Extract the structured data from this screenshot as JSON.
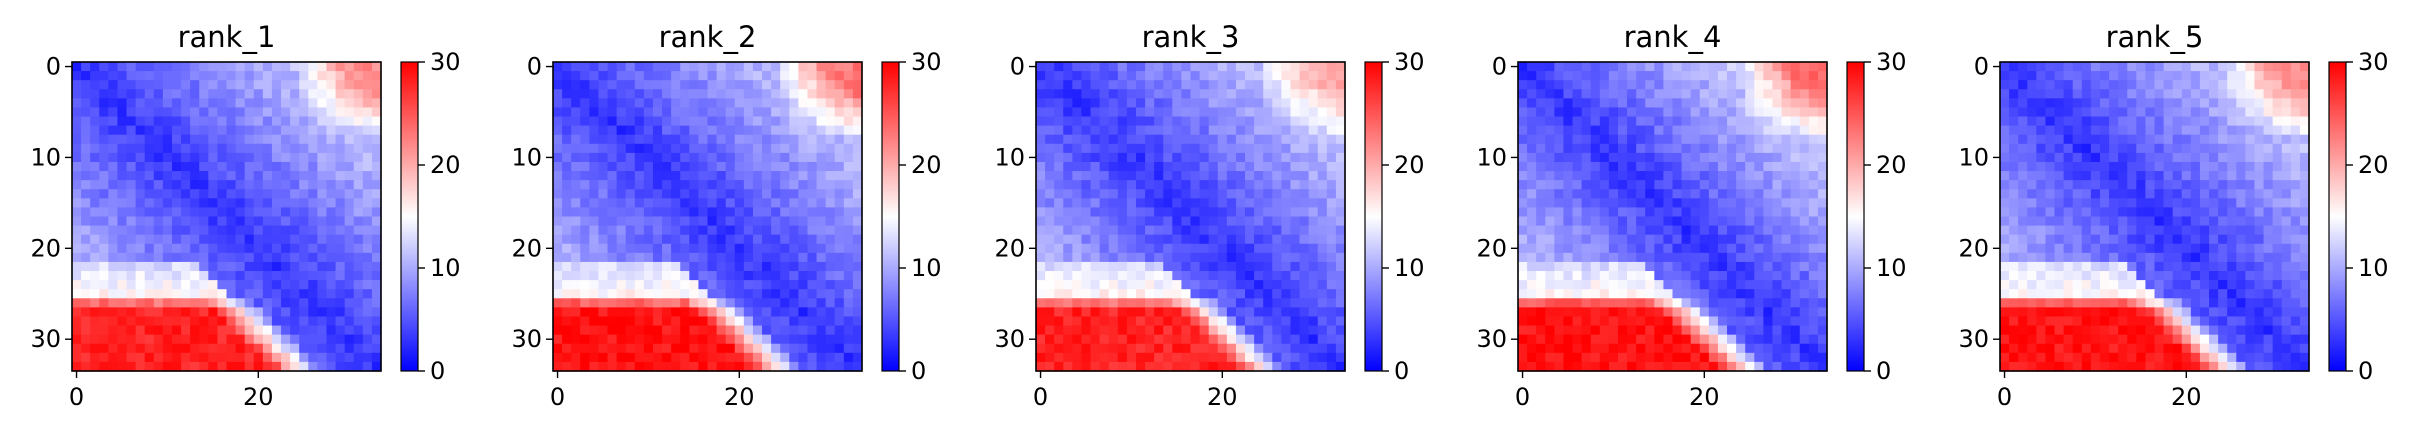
{
  "chart_data": [
    {
      "type": "heatmap",
      "title": "rank_1",
      "matrix_size": 34,
      "x_ticks": [
        "0",
        "20"
      ],
      "y_ticks": [
        "0",
        "10",
        "20",
        "30"
      ],
      "colorbar": {
        "min": 0,
        "max": 30,
        "ticks": [
          "0",
          "10",
          "20",
          "30"
        ],
        "colormap": "bwr"
      },
      "pattern": {
        "near_diagonal_value": 3,
        "far_off_diagonal_value": 14,
        "bottom_left_corner_value": 28,
        "top_right_corner_value": 22,
        "red_block_rows_start": 26
      }
    },
    {
      "type": "heatmap",
      "title": "rank_2",
      "matrix_size": 34,
      "x_ticks": [
        "0",
        "20"
      ],
      "y_ticks": [
        "0",
        "10",
        "20",
        "30"
      ],
      "colorbar": {
        "min": 0,
        "max": 30,
        "ticks": [
          "0",
          "10",
          "20",
          "30"
        ],
        "colormap": "bwr"
      },
      "pattern": {
        "near_diagonal_value": 3,
        "far_off_diagonal_value": 14,
        "bottom_left_corner_value": 29,
        "top_right_corner_value": 23,
        "red_block_rows_start": 26
      }
    },
    {
      "type": "heatmap",
      "title": "rank_3",
      "matrix_size": 34,
      "x_ticks": [
        "0",
        "20"
      ],
      "y_ticks": [
        "0",
        "10",
        "20",
        "30"
      ],
      "colorbar": {
        "min": 0,
        "max": 30,
        "ticks": [
          "0",
          "10",
          "20",
          "30"
        ],
        "colormap": "bwr"
      },
      "pattern": {
        "near_diagonal_value": 3,
        "far_off_diagonal_value": 14,
        "bottom_left_corner_value": 28,
        "top_right_corner_value": 20,
        "red_block_rows_start": 26
      }
    },
    {
      "type": "heatmap",
      "title": "rank_4",
      "matrix_size": 34,
      "x_ticks": [
        "0",
        "20"
      ],
      "y_ticks": [
        "0",
        "10",
        "20",
        "30"
      ],
      "colorbar": {
        "min": 0,
        "max": 30,
        "ticks": [
          "0",
          "10",
          "20",
          "30"
        ],
        "colormap": "bwr"
      },
      "pattern": {
        "near_diagonal_value": 3,
        "far_off_diagonal_value": 15,
        "bottom_left_corner_value": 29,
        "top_right_corner_value": 24,
        "red_block_rows_start": 26
      }
    },
    {
      "type": "heatmap",
      "title": "rank_5",
      "matrix_size": 34,
      "x_ticks": [
        "0",
        "20"
      ],
      "y_ticks": [
        "0",
        "10",
        "20",
        "30"
      ],
      "colorbar": {
        "min": 0,
        "max": 30,
        "ticks": [
          "0",
          "10",
          "20",
          "30"
        ],
        "colormap": "bwr"
      },
      "pattern": {
        "near_diagonal_value": 3,
        "far_off_diagonal_value": 14,
        "bottom_left_corner_value": 29,
        "top_right_corner_value": 22,
        "red_block_rows_start": 26
      }
    }
  ]
}
